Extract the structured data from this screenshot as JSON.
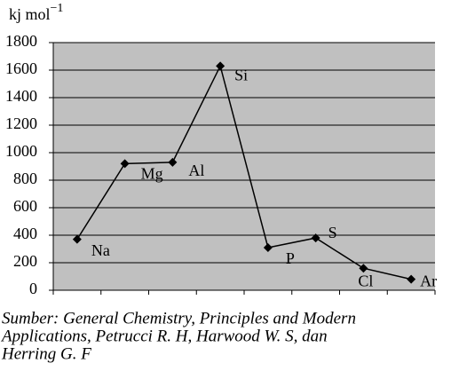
{
  "chart_data": {
    "type": "line",
    "y_label": {
      "text": "kj mol",
      "superscript": "−1"
    },
    "categories": [
      "Na",
      "Mg",
      "Al",
      "Si",
      "P",
      "S",
      "Cl",
      "Ar"
    ],
    "values": [
      370,
      920,
      930,
      1630,
      310,
      380,
      160,
      80
    ],
    "color": "#000000",
    "plot_background": "#c0c0c0",
    "ylim": [
      0,
      1800
    ],
    "yticks": [
      0,
      200,
      400,
      600,
      800,
      1000,
      1200,
      1400,
      1600,
      1800
    ],
    "grid": true,
    "caption": [
      "Sumber: General Chemistry, Principles and Modern",
      "Applications, Petrucci R. H, Harwood W. S, dan",
      "Herring G. F"
    ]
  }
}
